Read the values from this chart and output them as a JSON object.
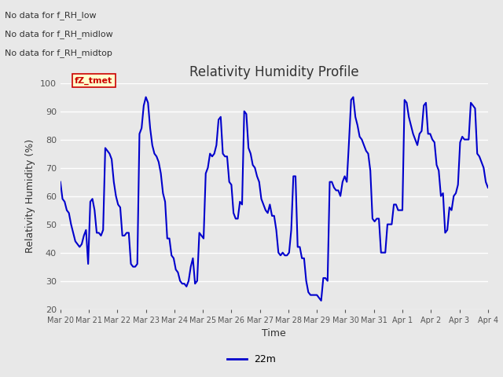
{
  "title": "Relativity Humidity Profile",
  "xlabel": "Time",
  "ylabel": "Relativity Humidity (%)",
  "ylim": [
    20,
    100
  ],
  "yticks": [
    20,
    30,
    40,
    50,
    60,
    70,
    80,
    90,
    100
  ],
  "line_color": "#0000CC",
  "line_width": 1.5,
  "legend_label": "22m",
  "no_data_labels": [
    "No data for f_RH_low",
    "No data for f_RH_midlow",
    "No data for f_RH_midtop"
  ],
  "tooltip_text": "fZ_tmet",
  "background_color": "#e8e8e8",
  "xtick_labels": [
    "Mar 20",
    "Mar 21",
    "Mar 22",
    "Mar 23",
    "Mar 24",
    "Mar 25",
    "Mar 26",
    "Mar 27",
    "Mar 28",
    "Mar 29",
    "Mar 30",
    "Mar 31",
    "Apr 1",
    "Apr 2",
    "Apr 3",
    "Apr 4"
  ],
  "y_values": [
    65,
    59,
    58,
    55,
    54,
    50,
    47,
    44,
    43,
    42,
    43,
    46,
    48,
    36,
    58,
    59,
    55,
    47,
    47,
    46,
    48,
    77,
    76,
    75,
    73,
    65,
    60,
    57,
    56,
    46,
    46,
    47,
    47,
    36,
    35,
    35,
    36,
    82,
    84,
    92,
    95,
    93,
    84,
    78,
    75,
    74,
    72,
    68,
    61,
    58,
    45,
    45,
    39,
    38,
    34,
    33,
    30,
    29,
    29,
    28,
    30,
    35,
    38,
    29,
    30,
    47,
    46,
    45,
    68,
    70,
    75,
    74,
    75,
    78,
    87,
    88,
    75,
    74,
    74,
    65,
    64,
    54,
    52,
    52,
    58,
    57,
    90,
    89,
    77,
    75,
    71,
    70,
    67,
    65,
    59,
    57,
    55,
    54,
    57,
    53,
    53,
    48,
    40,
    39,
    40,
    39,
    39,
    40,
    48,
    67,
    67,
    42,
    42,
    38,
    38,
    30,
    26,
    25,
    25,
    25,
    25,
    24,
    23,
    31,
    31,
    30,
    65,
    65,
    63,
    62,
    62,
    60,
    65,
    67,
    65,
    79,
    94,
    95,
    88,
    85,
    81,
    80,
    78,
    76,
    75,
    69,
    52,
    51,
    52,
    52,
    40,
    40,
    40,
    50,
    50,
    50,
    57,
    57,
    55,
    55,
    55,
    94,
    93,
    88,
    85,
    82,
    80,
    78,
    82,
    83,
    92,
    93,
    82,
    82,
    80,
    79,
    71,
    69,
    60,
    61,
    47,
    48,
    56,
    55,
    60,
    61,
    64,
    79,
    81,
    80,
    80,
    80,
    93,
    92,
    91,
    75,
    74,
    72,
    70,
    65,
    63
  ]
}
